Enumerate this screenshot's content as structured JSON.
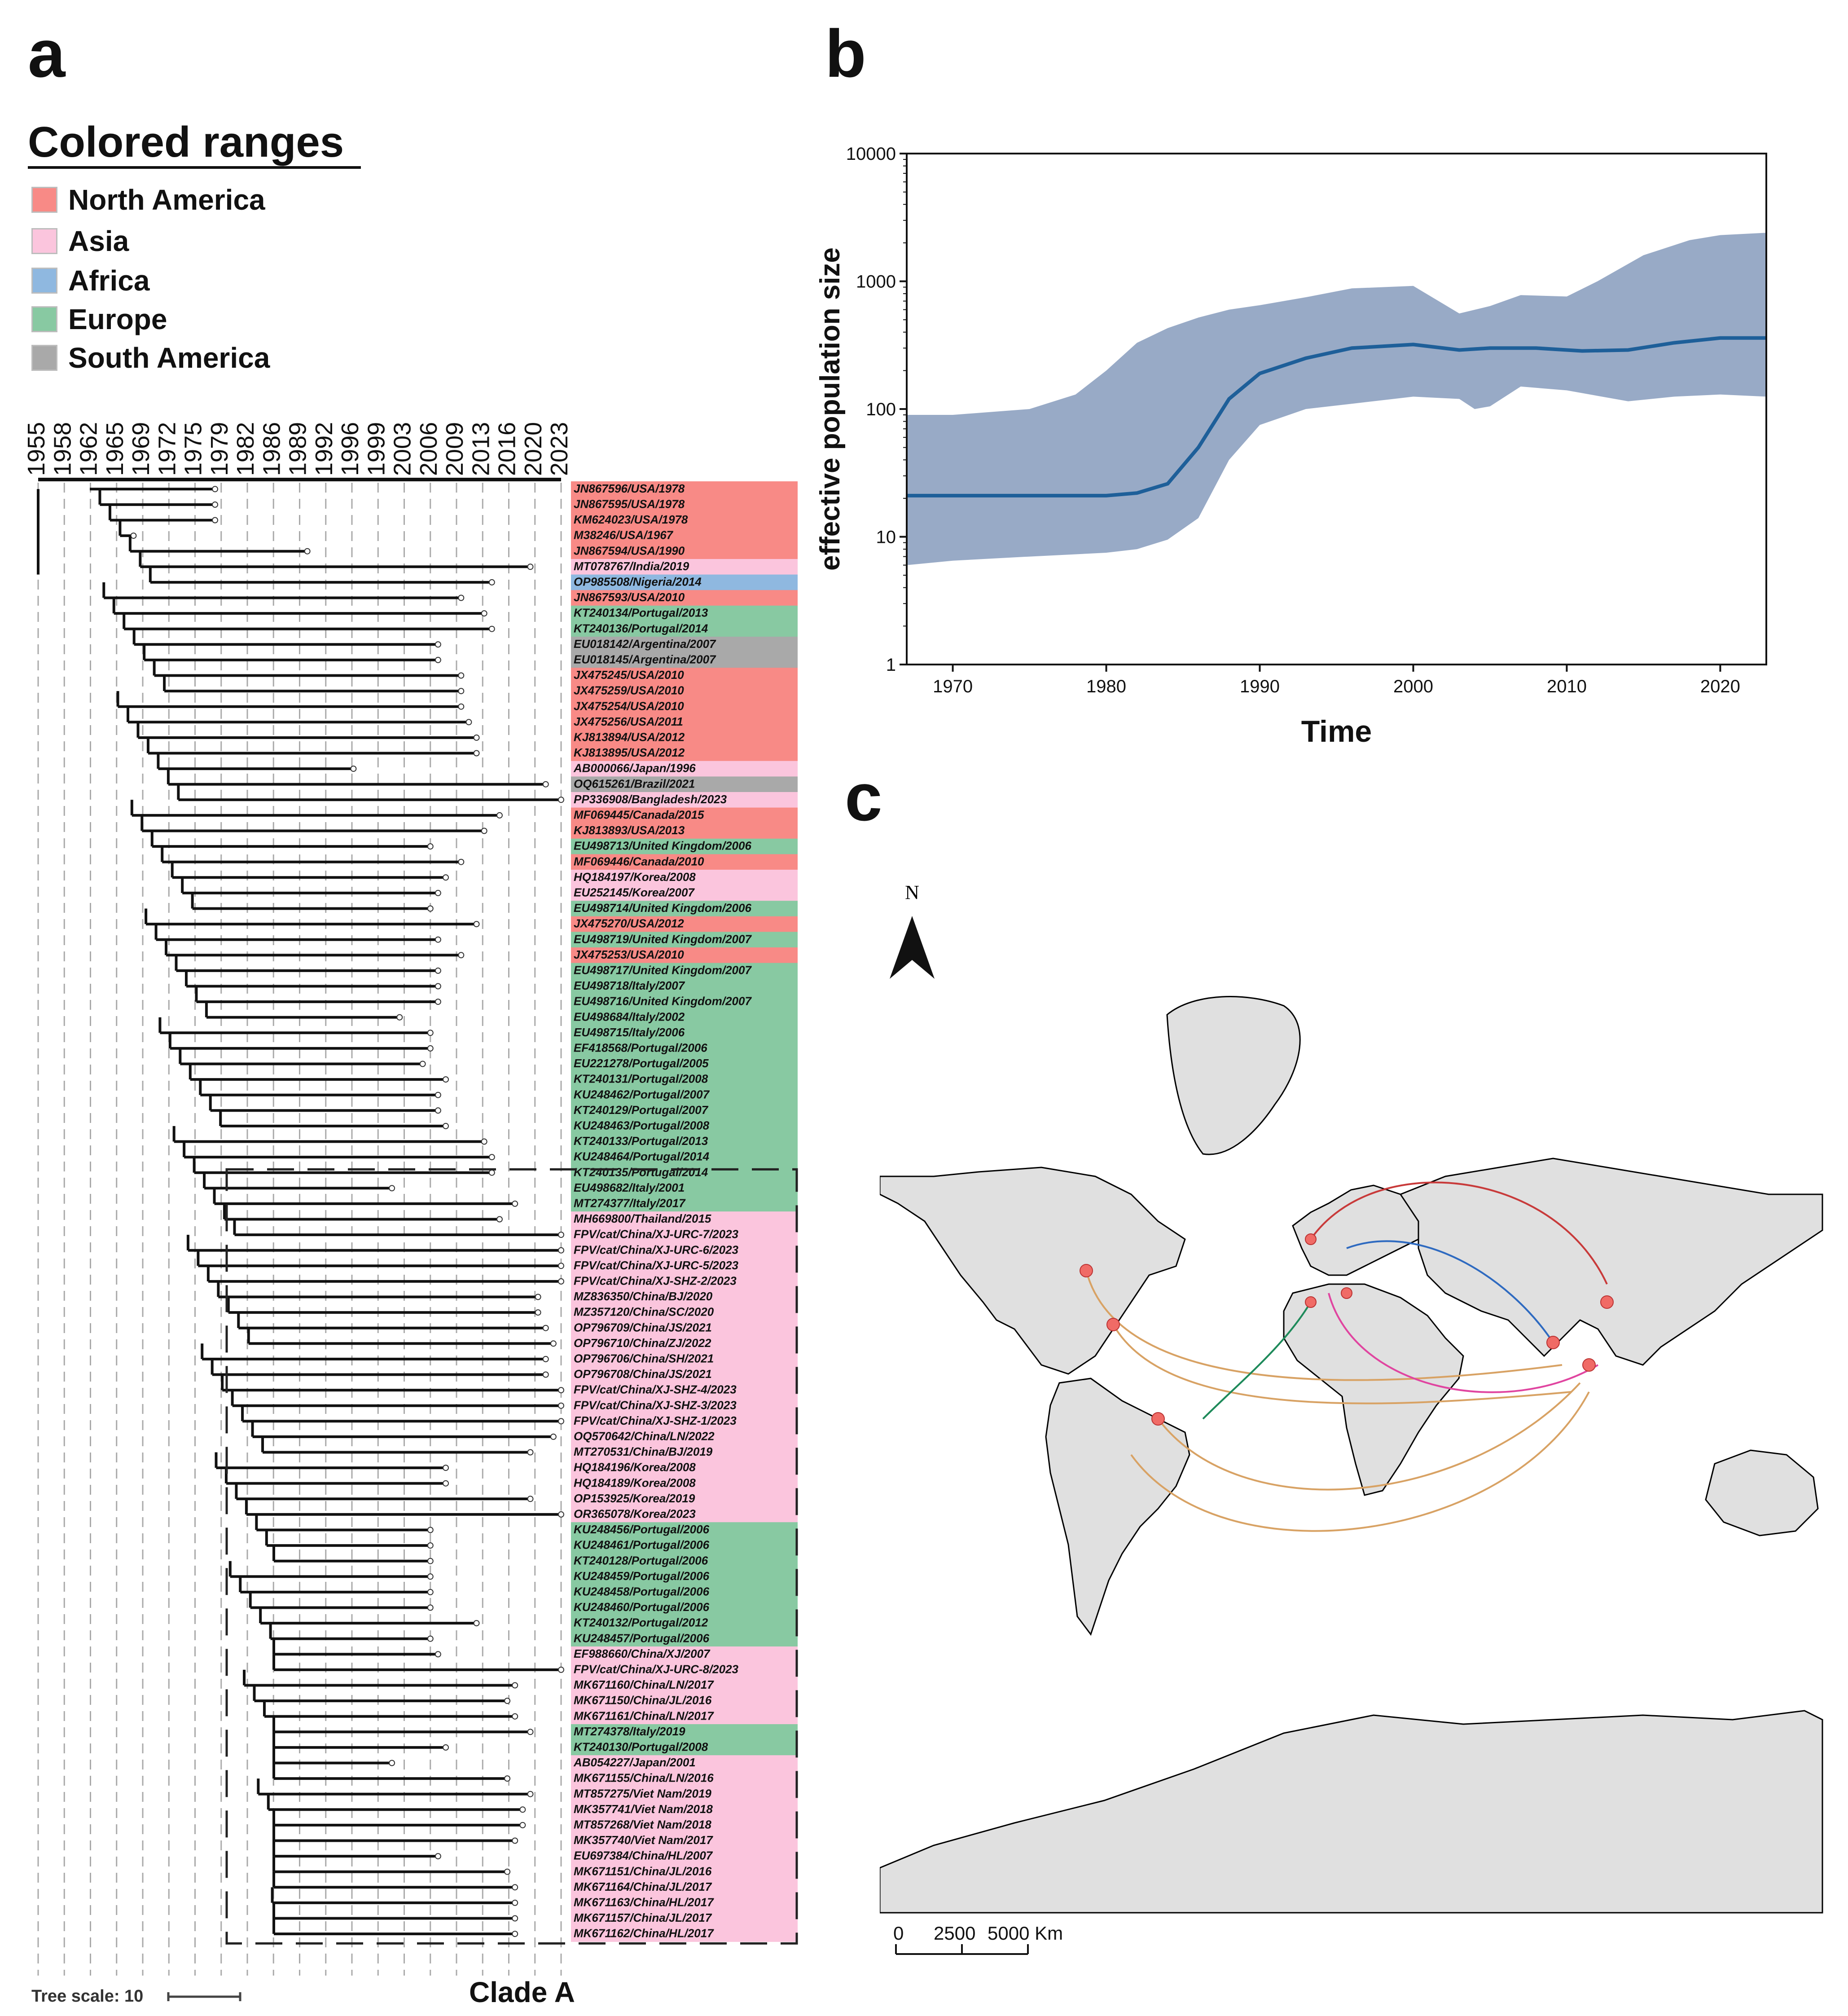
{
  "panels": {
    "a": "a",
    "b": "b",
    "c": "c"
  },
  "legend": {
    "title": "Colored ranges",
    "items": [
      {
        "label": "North America",
        "color": "#f88a86"
      },
      {
        "label": "Asia",
        "color": "#fbc5dd"
      },
      {
        "label": "Africa",
        "color": "#8fb8e0"
      },
      {
        "label": "Europe",
        "color": "#88c9a2"
      },
      {
        "label": "South America",
        "color": "#a9a9a9"
      }
    ]
  },
  "tree": {
    "years": [
      "1955",
      "1958",
      "1962",
      "1965",
      "1969",
      "1972",
      "1975",
      "1979",
      "1982",
      "1986",
      "1989",
      "1992",
      "1996",
      "1999",
      "2003",
      "2006",
      "2009",
      "2013",
      "2016",
      "2020",
      "2023"
    ],
    "tips": [
      {
        "label": "JN867596/USA/1978",
        "region": "North America"
      },
      {
        "label": "JN867595/USA/1978",
        "region": "North America"
      },
      {
        "label": "KM624023/USA/1978",
        "region": "North America"
      },
      {
        "label": "M38246/USA/1967",
        "region": "North America"
      },
      {
        "label": "JN867594/USA/1990",
        "region": "North America"
      },
      {
        "label": "MT078767/India/2019",
        "region": "Asia"
      },
      {
        "label": "OP985508/Nigeria/2014",
        "region": "Africa"
      },
      {
        "label": "JN867593/USA/2010",
        "region": "North America"
      },
      {
        "label": "KT240134/Portugal/2013",
        "region": "Europe"
      },
      {
        "label": "KT240136/Portugal/2014",
        "region": "Europe"
      },
      {
        "label": "EU018142/Argentina/2007",
        "region": "South America"
      },
      {
        "label": "EU018145/Argentina/2007",
        "region": "South America"
      },
      {
        "label": "JX475245/USA/2010",
        "region": "North America"
      },
      {
        "label": "JX475259/USA/2010",
        "region": "North America"
      },
      {
        "label": "JX475254/USA/2010",
        "region": "North America"
      },
      {
        "label": "JX475256/USA/2011",
        "region": "North America"
      },
      {
        "label": "KJ813894/USA/2012",
        "region": "North America"
      },
      {
        "label": "KJ813895/USA/2012",
        "region": "North America"
      },
      {
        "label": "AB000066/Japan/1996",
        "region": "Asia"
      },
      {
        "label": "OQ615261/Brazil/2021",
        "region": "South America"
      },
      {
        "label": "PP336908/Bangladesh/2023",
        "region": "Asia"
      },
      {
        "label": "MF069445/Canada/2015",
        "region": "North America"
      },
      {
        "label": "KJ813893/USA/2013",
        "region": "North America"
      },
      {
        "label": "EU498713/United Kingdom/2006",
        "region": "Europe"
      },
      {
        "label": "MF069446/Canada/2010",
        "region": "North America"
      },
      {
        "label": "HQ184197/Korea/2008",
        "region": "Asia"
      },
      {
        "label": "EU252145/Korea/2007",
        "region": "Asia"
      },
      {
        "label": "EU498714/United Kingdom/2006",
        "region": "Europe"
      },
      {
        "label": "JX475270/USA/2012",
        "region": "North America"
      },
      {
        "label": "EU498719/United Kingdom/2007",
        "region": "Europe"
      },
      {
        "label": "JX475253/USA/2010",
        "region": "North America"
      },
      {
        "label": "EU498717/United Kingdom/2007",
        "region": "Europe"
      },
      {
        "label": "EU498718/Italy/2007",
        "region": "Europe"
      },
      {
        "label": "EU498716/United Kingdom/2007",
        "region": "Europe"
      },
      {
        "label": "EU498684/Italy/2002",
        "region": "Europe"
      },
      {
        "label": "EU498715/Italy/2006",
        "region": "Europe"
      },
      {
        "label": "EF418568/Portugal/2006",
        "region": "Europe"
      },
      {
        "label": "EU221278/Portugal/2005",
        "region": "Europe"
      },
      {
        "label": "KT240131/Portugal/2008",
        "region": "Europe"
      },
      {
        "label": "KU248462/Portugal/2007",
        "region": "Europe"
      },
      {
        "label": "KT240129/Portugal/2007",
        "region": "Europe"
      },
      {
        "label": "KU248463/Portugal/2008",
        "region": "Europe"
      },
      {
        "label": "KT240133/Portugal/2013",
        "region": "Europe"
      },
      {
        "label": "KU248464/Portugal/2014",
        "region": "Europe"
      },
      {
        "label": "KT240135/Portugal/2014",
        "region": "Europe"
      },
      {
        "label": "EU498682/Italy/2001",
        "region": "Europe"
      },
      {
        "label": "MT274377/Italy/2017",
        "region": "Europe"
      },
      {
        "label": "MH669800/Thailand/2015",
        "region": "Asia"
      },
      {
        "label": "FPV/cat/China/XJ-URC-7/2023",
        "region": "Asia"
      },
      {
        "label": "FPV/cat/China/XJ-URC-6/2023",
        "region": "Asia"
      },
      {
        "label": "FPV/cat/China/XJ-URC-5/2023",
        "region": "Asia"
      },
      {
        "label": "FPV/cat/China/XJ-SHZ-2/2023",
        "region": "Asia"
      },
      {
        "label": "MZ836350/China/BJ/2020",
        "region": "Asia"
      },
      {
        "label": "MZ357120/China/SC/2020",
        "region": "Asia"
      },
      {
        "label": "OP796709/China/JS/2021",
        "region": "Asia"
      },
      {
        "label": "OP796710/China/ZJ/2022",
        "region": "Asia"
      },
      {
        "label": "OP796706/China/SH/2021",
        "region": "Asia"
      },
      {
        "label": "OP796708/China/JS/2021",
        "region": "Asia"
      },
      {
        "label": "FPV/cat/China/XJ-SHZ-4/2023",
        "region": "Asia"
      },
      {
        "label": "FPV/cat/China/XJ-SHZ-3/2023",
        "region": "Asia"
      },
      {
        "label": "FPV/cat/China/XJ-SHZ-1/2023",
        "region": "Asia"
      },
      {
        "label": "OQ570642/China/LN/2022",
        "region": "Asia"
      },
      {
        "label": "MT270531/China/BJ/2019",
        "region": "Asia"
      },
      {
        "label": "HQ184196/Korea/2008",
        "region": "Asia"
      },
      {
        "label": "HQ184189/Korea/2008",
        "region": "Asia"
      },
      {
        "label": "OP153925/Korea/2019",
        "region": "Asia"
      },
      {
        "label": "OR365078/Korea/2023",
        "region": "Asia"
      },
      {
        "label": "KU248456/Portugal/2006",
        "region": "Europe"
      },
      {
        "label": "KU248461/Portugal/2006",
        "region": "Europe"
      },
      {
        "label": "KT240128/Portugal/2006",
        "region": "Europe"
      },
      {
        "label": "KU248459/Portugal/2006",
        "region": "Europe"
      },
      {
        "label": "KU248458/Portugal/2006",
        "region": "Europe"
      },
      {
        "label": "KU248460/Portugal/2006",
        "region": "Europe"
      },
      {
        "label": "KT240132/Portugal/2012",
        "region": "Europe"
      },
      {
        "label": "KU248457/Portugal/2006",
        "region": "Europe"
      },
      {
        "label": "EF988660/China/XJ/2007",
        "region": "Asia"
      },
      {
        "label": "FPV/cat/China/XJ-URC-8/2023",
        "region": "Asia"
      },
      {
        "label": "MK671160/China/LN/2017",
        "region": "Asia"
      },
      {
        "label": "MK671150/China/JL/2016",
        "region": "Asia"
      },
      {
        "label": "MK671161/China/LN/2017",
        "region": "Asia"
      },
      {
        "label": "MT274378/Italy/2019",
        "region": "Europe"
      },
      {
        "label": "KT240130/Portugal/2008",
        "region": "Europe"
      },
      {
        "label": "AB054227/Japan/2001",
        "region": "Asia"
      },
      {
        "label": "MK671155/China/LN/2016",
        "region": "Asia"
      },
      {
        "label": "MT857275/Viet Nam/2019",
        "region": "Asia"
      },
      {
        "label": "MK357741/Viet Nam/2018",
        "region": "Asia"
      },
      {
        "label": "MT857268/Viet Nam/2018",
        "region": "Asia"
      },
      {
        "label": "MK357740/Viet Nam/2017",
        "region": "Asia"
      },
      {
        "label": "EU697384/China/HL/2007",
        "region": "Asia"
      },
      {
        "label": "MK671151/China/JL/2016",
        "region": "Asia"
      },
      {
        "label": "MK671164/China/JL/2017",
        "region": "Asia"
      },
      {
        "label": "MK671163/China/HL/2017",
        "region": "Asia"
      },
      {
        "label": "MK671157/China/JL/2017",
        "region": "Asia"
      },
      {
        "label": "MK671162/China/HL/2017",
        "region": "Asia"
      }
    ],
    "tree_scale_label": "Tree scale: 10",
    "clade_label": "Clade A"
  },
  "chart_data": {
    "type": "area",
    "title": "",
    "xlabel": "Time",
    "ylabel": "effective population size",
    "yscale": "log",
    "xlim": [
      1967,
      2023
    ],
    "ylim": [
      1,
      10000
    ],
    "x_ticks": [
      1970,
      1980,
      1990,
      2000,
      2010,
      2020
    ],
    "y_ticks": [
      1,
      10,
      100,
      1000,
      10000
    ],
    "series": [
      {
        "name": "median",
        "x": [
          1967,
          1970,
          1975,
          1980,
          1982,
          1984,
          1986,
          1988,
          1990,
          1993,
          1996,
          2000,
          2003,
          2005,
          2008,
          2011,
          2014,
          2017,
          2020,
          2023
        ],
        "values": [
          21,
          21,
          21,
          21,
          22,
          26,
          50,
          120,
          190,
          250,
          300,
          320,
          290,
          300,
          300,
          285,
          290,
          330,
          360,
          360
        ]
      },
      {
        "name": "lower 95% HPD",
        "x": [
          1967,
          1970,
          1975,
          1980,
          1982,
          1984,
          1986,
          1988,
          1990,
          1993,
          1996,
          2000,
          2003,
          2004,
          2005,
          2007,
          2010,
          2014,
          2017,
          2020,
          2023
        ],
        "values": [
          6,
          6.5,
          7,
          7.5,
          8,
          9.5,
          14,
          40,
          75,
          100,
          110,
          125,
          120,
          100,
          105,
          150,
          140,
          115,
          125,
          130,
          125
        ]
      },
      {
        "name": "upper 95% HPD",
        "x": [
          1967,
          1970,
          1975,
          1978,
          1980,
          1982,
          1984,
          1986,
          1988,
          1990,
          1993,
          1996,
          2000,
          2003,
          2005,
          2007,
          2010,
          2012,
          2015,
          2018,
          2020,
          2023
        ],
        "values": [
          90,
          90,
          100,
          130,
          200,
          330,
          430,
          520,
          600,
          650,
          750,
          880,
          920,
          560,
          640,
          780,
          760,
          1000,
          1600,
          2100,
          2300,
          2400
        ]
      }
    ],
    "band_color": "#98aac6",
    "line_color": "#1e5f99"
  },
  "map": {
    "north_label": "N",
    "scale_labels": [
      "0",
      "2500",
      "5000 Km"
    ]
  }
}
